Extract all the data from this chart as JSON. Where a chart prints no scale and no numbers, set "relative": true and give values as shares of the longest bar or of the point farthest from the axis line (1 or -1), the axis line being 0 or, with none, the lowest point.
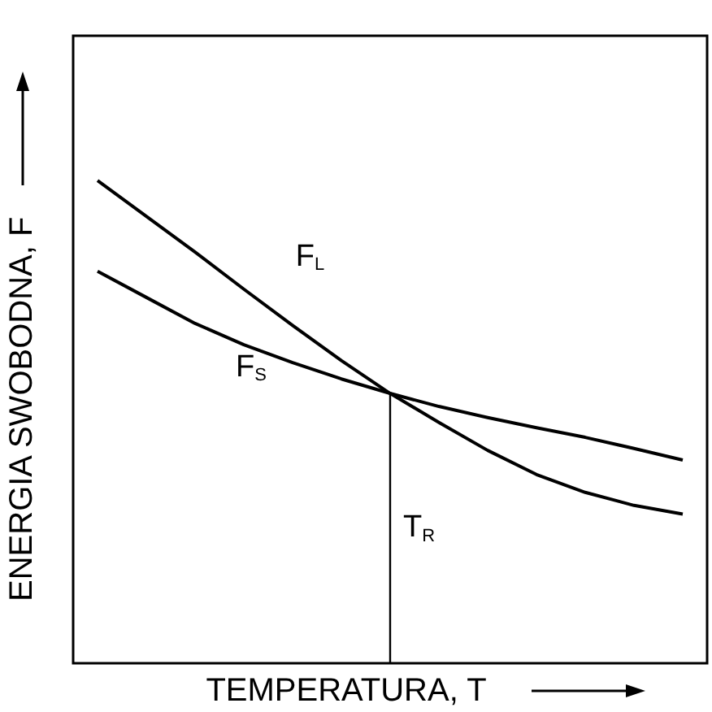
{
  "chart_data": {
    "type": "line",
    "relative": true,
    "xlabel": "TEMPERATURA, T",
    "ylabel": "ENERGIA SWOBODNA, F",
    "legend": false,
    "grid": false,
    "tick_labels": false,
    "marker": "none",
    "line_style": "solid",
    "categories": [
      null,
      null,
      null,
      null,
      null,
      null,
      null,
      null,
      null,
      null,
      null,
      null,
      null
    ],
    "annotations": [
      "T$_{R}$"
    ],
    "series": [
      {
        "name": "F$_{L}$",
        "color": "#000000",
        "values": [
          1.0,
          0.926,
          0.852,
          0.775,
          0.7,
          0.627,
          0.559,
          0.499,
          0.441,
          0.391,
          0.354,
          0.327,
          0.309
        ]
      },
      {
        "name": "F$_{S}$",
        "color": "#000000",
        "values": [
          0.812,
          0.758,
          0.704,
          0.66,
          0.623,
          0.589,
          0.559,
          0.532,
          0.509,
          0.488,
          0.468,
          0.445,
          0.421
        ]
      }
    ]
  }
}
